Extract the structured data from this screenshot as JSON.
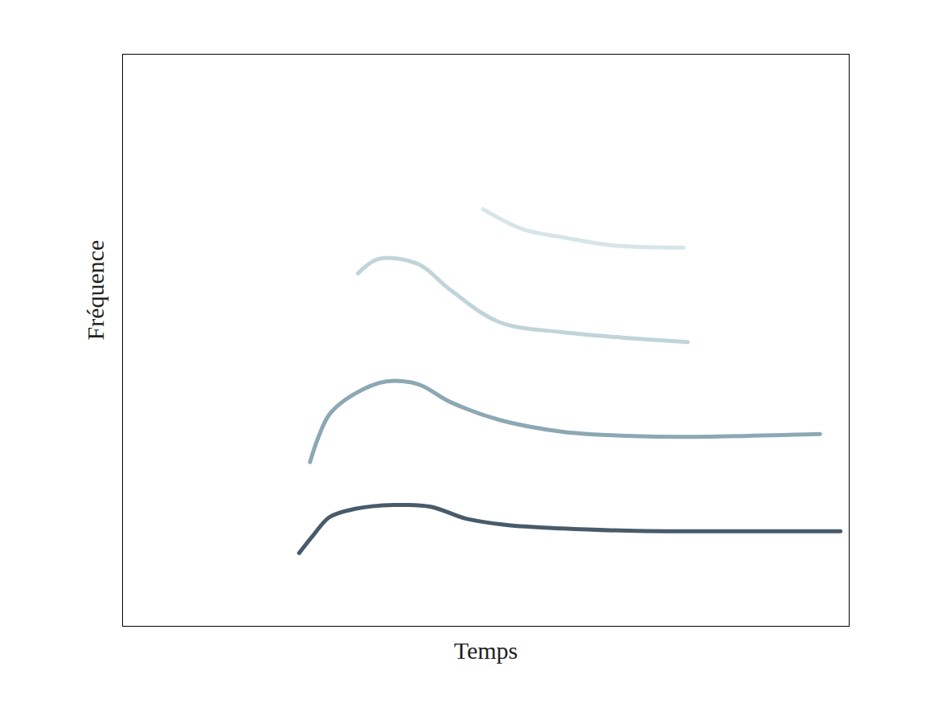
{
  "chart_data": {
    "type": "line",
    "xlabel": "Temps",
    "ylabel": "Fréquence",
    "xlim": [
      0,
      1
    ],
    "ylim": [
      0,
      1
    ],
    "xticks": [],
    "yticks": [],
    "tick_labels": false,
    "grid": false,
    "series": [
      {
        "color": "#34495a",
        "x": [
          0.243,
          0.263,
          0.285,
          0.319,
          0.374,
          0.424,
          0.473,
          0.529,
          0.606,
          0.695,
          0.75,
          0.827,
          0.988
        ],
        "values": [
          0.128,
          0.16,
          0.191,
          0.205,
          0.212,
          0.209,
          0.188,
          0.177,
          0.171,
          0.167,
          0.166,
          0.166,
          0.166
        ]
      },
      {
        "color": "#7f9fac",
        "x": [
          0.258,
          0.269,
          0.285,
          0.319,
          0.363,
          0.407,
          0.451,
          0.518,
          0.606,
          0.695,
          0.772,
          0.96
        ],
        "values": [
          0.287,
          0.329,
          0.371,
          0.406,
          0.428,
          0.423,
          0.392,
          0.361,
          0.34,
          0.333,
          0.331,
          0.336
        ]
      },
      {
        "color": "#b9cfd6",
        "x": [
          0.324,
          0.352,
          0.407,
          0.451,
          0.518,
          0.606,
          0.695,
          0.778
        ],
        "values": [
          0.617,
          0.642,
          0.633,
          0.588,
          0.532,
          0.514,
          0.504,
          0.497
        ]
      },
      {
        "color": "#d3e2e6",
        "x": [
          0.496,
          0.551,
          0.606,
          0.673,
          0.772
        ],
        "values": [
          0.729,
          0.694,
          0.68,
          0.666,
          0.662
        ]
      }
    ]
  }
}
